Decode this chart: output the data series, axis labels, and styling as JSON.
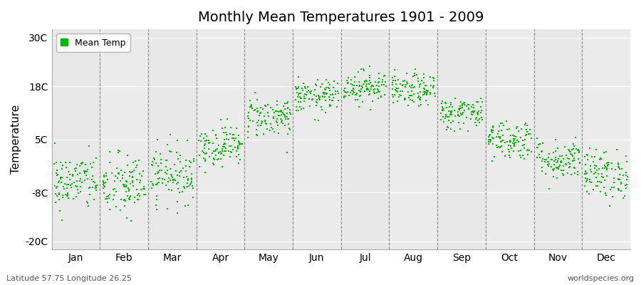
{
  "title": "Monthly Mean Temperatures 1901 - 2009",
  "ylabel": "Temperature",
  "xlabel_months": [
    "Jan",
    "Feb",
    "Mar",
    "Apr",
    "May",
    "Jun",
    "Jul",
    "Aug",
    "Sep",
    "Oct",
    "Nov",
    "Dec"
  ],
  "yticks": [
    -20,
    -8,
    5,
    18,
    30
  ],
  "ytick_labels": [
    "-20C",
    "-8C",
    "5C",
    "18C",
    "30C"
  ],
  "ylim": [
    -22,
    32
  ],
  "xlim": [
    0,
    12
  ],
  "marker_color": "#00BB00",
  "marker": "s",
  "marker_size": 3,
  "background_color": "#F0F0F0",
  "band_color_odd": "#E8E8E8",
  "band_color_even": "#EBEBEB",
  "legend_label": "Mean Temp",
  "footnote_left": "Latitude 57.75 Longitude 26.25",
  "footnote_right": "worldspecies.org",
  "n_years": 109,
  "monthly_mean_temps": [
    -5.5,
    -6.5,
    -3.5,
    3.5,
    10.5,
    15.5,
    18.0,
    17.0,
    11.5,
    5.0,
    0.0,
    -3.5
  ],
  "monthly_std_temps": [
    3.5,
    4.0,
    3.5,
    2.5,
    2.5,
    2.0,
    2.0,
    2.0,
    2.0,
    2.5,
    2.5,
    3.0
  ],
  "seed": 42
}
